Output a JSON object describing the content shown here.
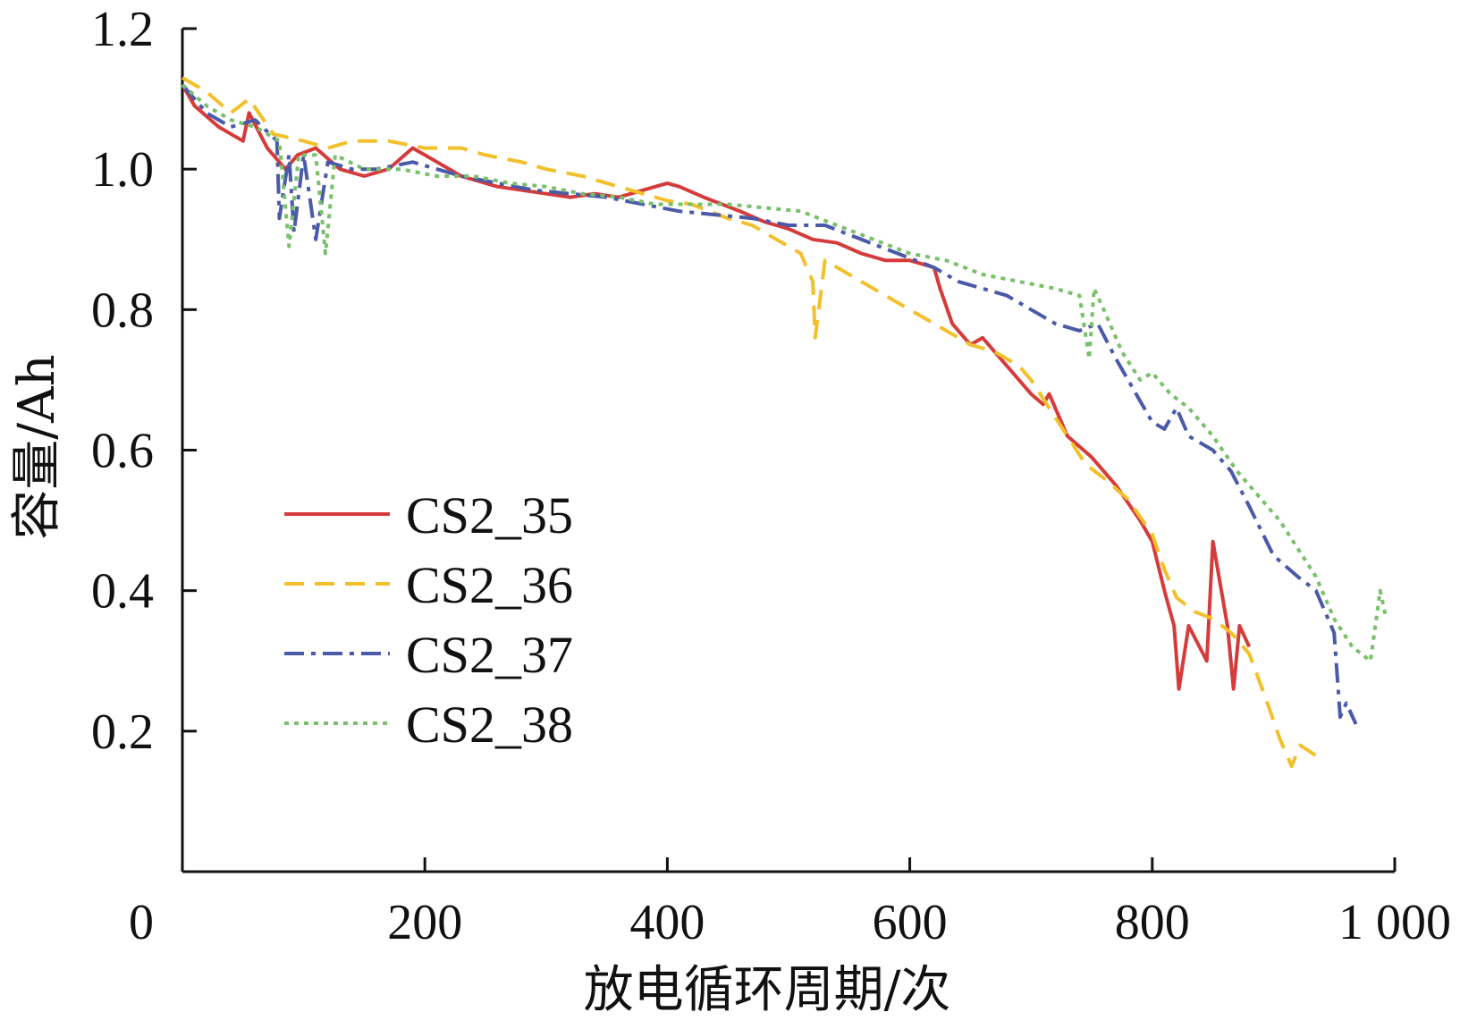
{
  "chart_data": {
    "type": "line",
    "title": "",
    "xlabel": "放电循环周期/次",
    "ylabel": "容量/Ah",
    "xlim": [
      0,
      1000
    ],
    "ylim": [
      0,
      1.2
    ],
    "x_ticks": [
      0,
      200,
      400,
      600,
      800,
      1000
    ],
    "x_tick_labels": [
      "0",
      "200",
      "400",
      "600",
      "800",
      "1 000"
    ],
    "y_ticks": [
      0.2,
      0.4,
      0.6,
      0.8,
      1.0,
      1.2
    ],
    "y_tick_labels": [
      "0.2",
      "0.4",
      "0.6",
      "0.8",
      "1.0",
      "1.2"
    ],
    "grid": false,
    "legend_position": "center-left",
    "series": [
      {
        "name": "CS2_35",
        "color": "#d63b3b",
        "dash": "solid",
        "points": [
          [
            0,
            1.12
          ],
          [
            10,
            1.09
          ],
          [
            30,
            1.06
          ],
          [
            50,
            1.04
          ],
          [
            55,
            1.08
          ],
          [
            70,
            1.03
          ],
          [
            85,
            1.0
          ],
          [
            95,
            1.02
          ],
          [
            110,
            1.03
          ],
          [
            130,
            1.0
          ],
          [
            150,
            0.99
          ],
          [
            170,
            1.0
          ],
          [
            190,
            1.03
          ],
          [
            200,
            1.02
          ],
          [
            230,
            0.99
          ],
          [
            260,
            0.975
          ],
          [
            280,
            0.97
          ],
          [
            300,
            0.965
          ],
          [
            320,
            0.96
          ],
          [
            340,
            0.965
          ],
          [
            360,
            0.96
          ],
          [
            380,
            0.97
          ],
          [
            400,
            0.98
          ],
          [
            410,
            0.975
          ],
          [
            430,
            0.96
          ],
          [
            460,
            0.94
          ],
          [
            480,
            0.925
          ],
          [
            500,
            0.915
          ],
          [
            520,
            0.9
          ],
          [
            540,
            0.895
          ],
          [
            560,
            0.88
          ],
          [
            580,
            0.87
          ],
          [
            600,
            0.87
          ],
          [
            620,
            0.86
          ],
          [
            625,
            0.83
          ],
          [
            635,
            0.78
          ],
          [
            650,
            0.75
          ],
          [
            660,
            0.76
          ],
          [
            670,
            0.74
          ],
          [
            680,
            0.72
          ],
          [
            700,
            0.68
          ],
          [
            710,
            0.665
          ],
          [
            715,
            0.68
          ],
          [
            730,
            0.62
          ],
          [
            750,
            0.59
          ],
          [
            770,
            0.55
          ],
          [
            790,
            0.5
          ],
          [
            800,
            0.47
          ],
          [
            810,
            0.4
          ],
          [
            818,
            0.35
          ],
          [
            822,
            0.26
          ],
          [
            830,
            0.35
          ],
          [
            845,
            0.3
          ],
          [
            850,
            0.47
          ],
          [
            862,
            0.35
          ],
          [
            867,
            0.26
          ],
          [
            872,
            0.35
          ],
          [
            880,
            0.32
          ]
        ]
      },
      {
        "name": "CS2_36",
        "color": "#f2c02a",
        "dash": "22,12",
        "points": [
          [
            0,
            1.13
          ],
          [
            20,
            1.11
          ],
          [
            40,
            1.08
          ],
          [
            55,
            1.1
          ],
          [
            75,
            1.05
          ],
          [
            100,
            1.04
          ],
          [
            120,
            1.03
          ],
          [
            140,
            1.04
          ],
          [
            170,
            1.04
          ],
          [
            200,
            1.03
          ],
          [
            230,
            1.03
          ],
          [
            250,
            1.02
          ],
          [
            280,
            1.01
          ],
          [
            300,
            1.0
          ],
          [
            330,
            0.99
          ],
          [
            350,
            0.98
          ],
          [
            380,
            0.965
          ],
          [
            400,
            0.955
          ],
          [
            420,
            0.95
          ],
          [
            450,
            0.93
          ],
          [
            470,
            0.92
          ],
          [
            490,
            0.9
          ],
          [
            510,
            0.88
          ],
          [
            520,
            0.84
          ],
          [
            522,
            0.76
          ],
          [
            530,
            0.87
          ],
          [
            550,
            0.85
          ],
          [
            570,
            0.83
          ],
          [
            590,
            0.81
          ],
          [
            610,
            0.79
          ],
          [
            630,
            0.77
          ],
          [
            650,
            0.75
          ],
          [
            670,
            0.74
          ],
          [
            690,
            0.72
          ],
          [
            700,
            0.7
          ],
          [
            715,
            0.66
          ],
          [
            730,
            0.62
          ],
          [
            745,
            0.58
          ],
          [
            760,
            0.56
          ],
          [
            780,
            0.53
          ],
          [
            800,
            0.48
          ],
          [
            810,
            0.43
          ],
          [
            820,
            0.39
          ],
          [
            835,
            0.37
          ],
          [
            850,
            0.36
          ],
          [
            865,
            0.34
          ],
          [
            880,
            0.31
          ],
          [
            895,
            0.24
          ],
          [
            905,
            0.19
          ],
          [
            915,
            0.15
          ],
          [
            922,
            0.18
          ],
          [
            935,
            0.165
          ]
        ]
      },
      {
        "name": "CS2_37",
        "color": "#4a5aa8",
        "dash": "22,8,5,8",
        "points": [
          [
            0,
            1.12
          ],
          [
            20,
            1.08
          ],
          [
            40,
            1.06
          ],
          [
            60,
            1.07
          ],
          [
            78,
            1.04
          ],
          [
            80,
            0.93
          ],
          [
            88,
            1.02
          ],
          [
            92,
            0.91
          ],
          [
            100,
            1.02
          ],
          [
            110,
            0.9
          ],
          [
            120,
            1.01
          ],
          [
            140,
            1.0
          ],
          [
            160,
            1.0
          ],
          [
            190,
            1.01
          ],
          [
            210,
            1.0
          ],
          [
            230,
            0.99
          ],
          [
            260,
            0.98
          ],
          [
            290,
            0.97
          ],
          [
            320,
            0.965
          ],
          [
            350,
            0.96
          ],
          [
            380,
            0.95
          ],
          [
            410,
            0.94
          ],
          [
            440,
            0.935
          ],
          [
            470,
            0.93
          ],
          [
            500,
            0.92
          ],
          [
            530,
            0.92
          ],
          [
            560,
            0.9
          ],
          [
            590,
            0.88
          ],
          [
            620,
            0.86
          ],
          [
            640,
            0.84
          ],
          [
            660,
            0.83
          ],
          [
            680,
            0.82
          ],
          [
            700,
            0.8
          ],
          [
            720,
            0.78
          ],
          [
            740,
            0.77
          ],
          [
            755,
            0.78
          ],
          [
            770,
            0.73
          ],
          [
            780,
            0.7
          ],
          [
            790,
            0.67
          ],
          [
            800,
            0.64
          ],
          [
            810,
            0.63
          ],
          [
            820,
            0.66
          ],
          [
            830,
            0.62
          ],
          [
            850,
            0.6
          ],
          [
            865,
            0.57
          ],
          [
            880,
            0.52
          ],
          [
            900,
            0.45
          ],
          [
            920,
            0.42
          ],
          [
            935,
            0.4
          ],
          [
            950,
            0.34
          ],
          [
            955,
            0.22
          ],
          [
            960,
            0.24
          ],
          [
            968,
            0.21
          ]
        ]
      },
      {
        "name": "CS2_38",
        "color": "#79c06b",
        "dash": "5,6",
        "points": [
          [
            0,
            1.12
          ],
          [
            20,
            1.09
          ],
          [
            40,
            1.07
          ],
          [
            60,
            1.06
          ],
          [
            80,
            1.04
          ],
          [
            88,
            0.89
          ],
          [
            96,
            1.02
          ],
          [
            110,
            1.02
          ],
          [
            118,
            0.88
          ],
          [
            126,
            1.02
          ],
          [
            150,
            1.0
          ],
          [
            180,
            1.0
          ],
          [
            210,
            0.99
          ],
          [
            240,
            0.99
          ],
          [
            270,
            0.98
          ],
          [
            300,
            0.975
          ],
          [
            330,
            0.965
          ],
          [
            360,
            0.96
          ],
          [
            390,
            0.95
          ],
          [
            420,
            0.95
          ],
          [
            450,
            0.95
          ],
          [
            480,
            0.945
          ],
          [
            510,
            0.94
          ],
          [
            540,
            0.92
          ],
          [
            570,
            0.9
          ],
          [
            600,
            0.88
          ],
          [
            630,
            0.87
          ],
          [
            660,
            0.85
          ],
          [
            690,
            0.84
          ],
          [
            720,
            0.83
          ],
          [
            740,
            0.82
          ],
          [
            748,
            0.73
          ],
          [
            752,
            0.83
          ],
          [
            760,
            0.8
          ],
          [
            775,
            0.74
          ],
          [
            790,
            0.7
          ],
          [
            800,
            0.71
          ],
          [
            815,
            0.68
          ],
          [
            830,
            0.66
          ],
          [
            850,
            0.62
          ],
          [
            870,
            0.57
          ],
          [
            890,
            0.53
          ],
          [
            905,
            0.5
          ],
          [
            920,
            0.46
          ],
          [
            935,
            0.42
          ],
          [
            950,
            0.36
          ],
          [
            965,
            0.32
          ],
          [
            980,
            0.3
          ],
          [
            988,
            0.4
          ],
          [
            993,
            0.36
          ]
        ]
      }
    ]
  }
}
